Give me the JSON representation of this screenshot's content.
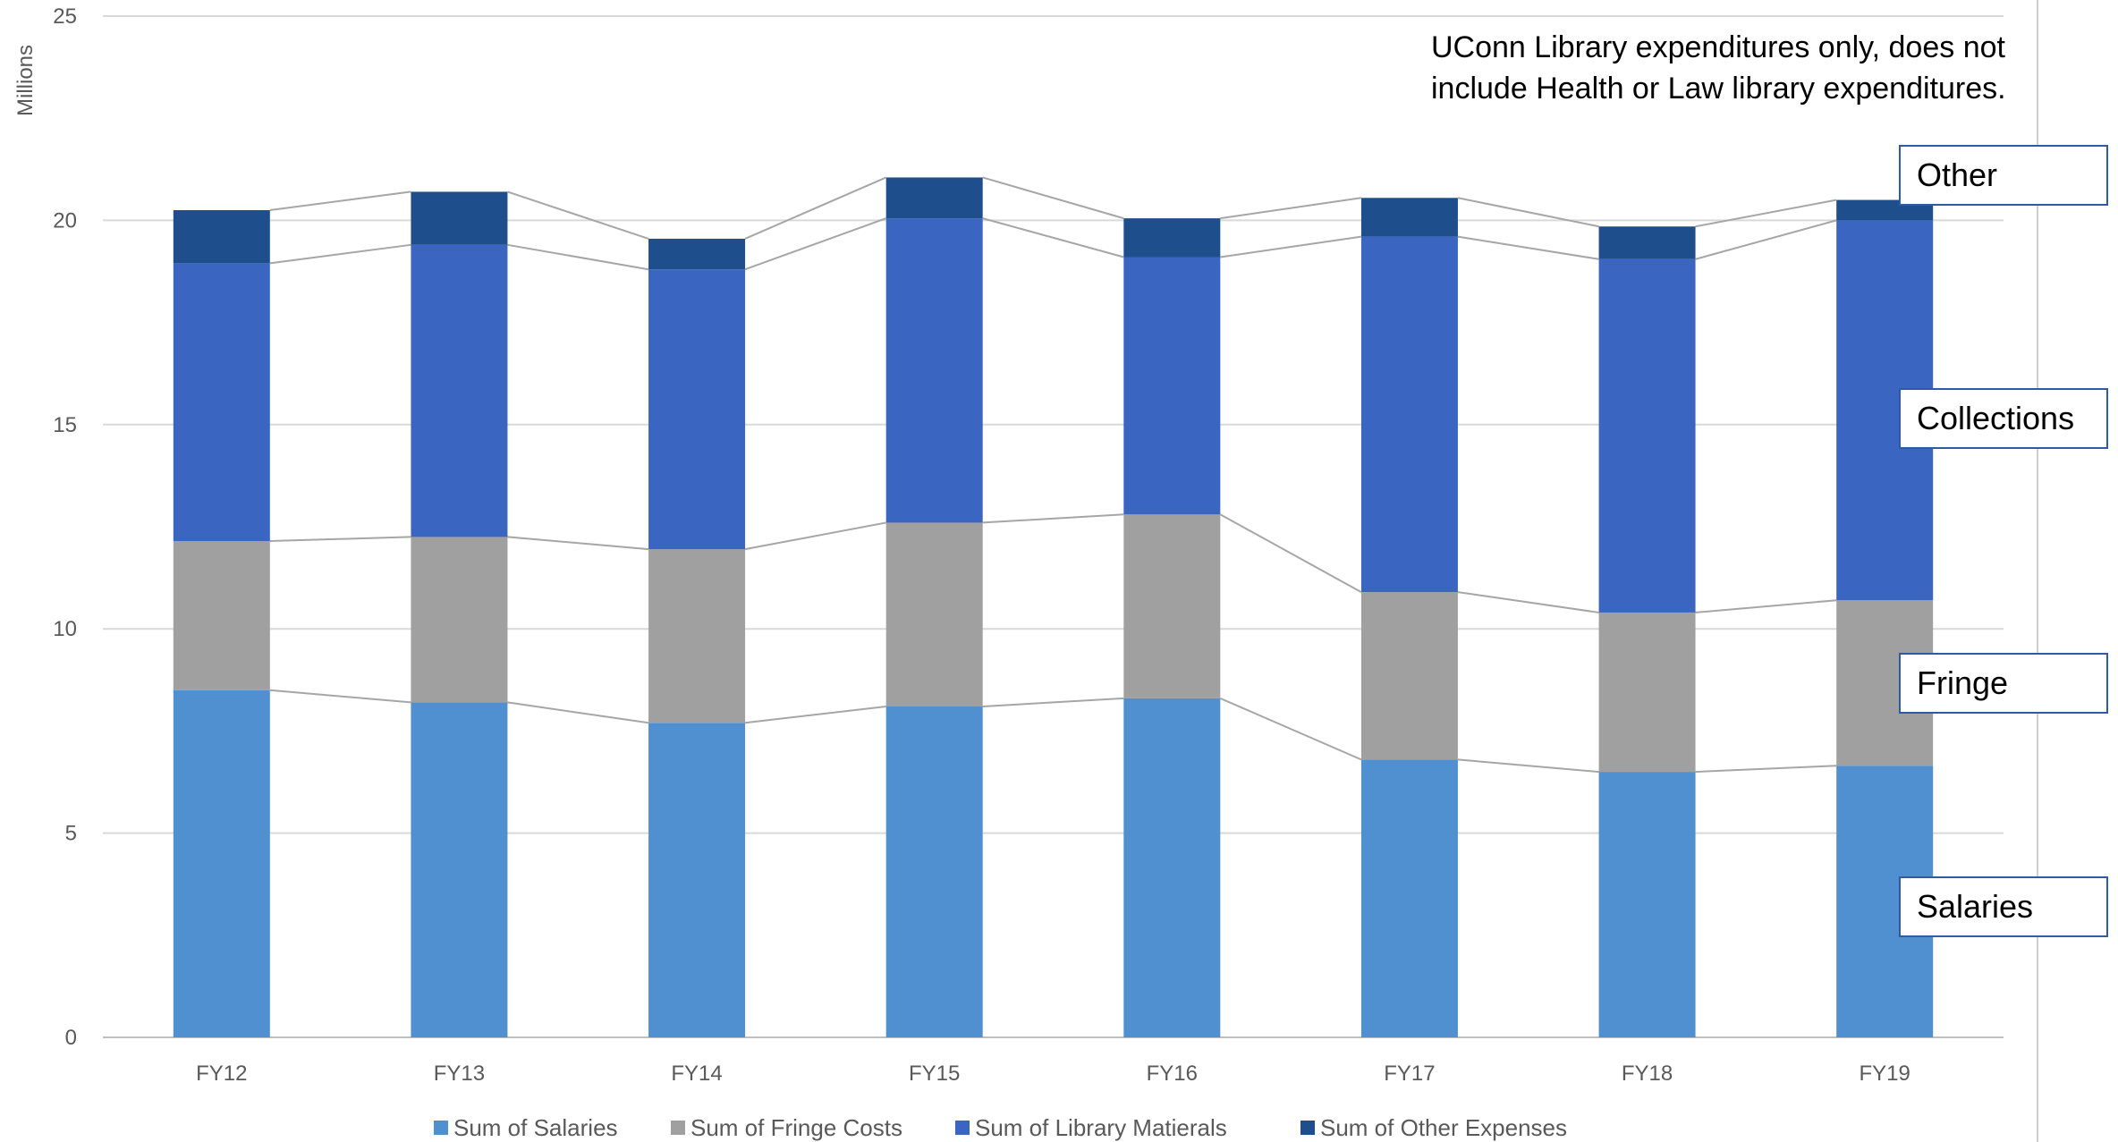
{
  "chart_data": {
    "type": "bar",
    "stacked": true,
    "ylabel": "Millions",
    "ylim": [
      0,
      25
    ],
    "yticks": [
      0,
      5,
      10,
      15,
      20,
      25
    ],
    "grid": true,
    "categories": [
      "FY12",
      "FY13",
      "FY14",
      "FY15",
      "FY16",
      "FY17",
      "FY18",
      "FY19"
    ],
    "series": [
      {
        "name": "Sum of Salaries",
        "color": "#5090d0",
        "values": [
          8.5,
          8.2,
          7.7,
          8.1,
          8.3,
          6.8,
          6.5,
          6.65
        ]
      },
      {
        "name": "Sum of Fringe Costs",
        "color": "#a0a0a0",
        "values": [
          3.65,
          4.05,
          4.25,
          4.5,
          4.5,
          4.1,
          3.9,
          4.05
        ]
      },
      {
        "name": "Sum of Library Matierals",
        "color": "#3a65c0",
        "values": [
          6.8,
          7.15,
          6.85,
          7.45,
          6.3,
          8.7,
          8.65,
          9.3
        ]
      },
      {
        "name": "Sum of Other Expenses",
        "color": "#1f4e8c",
        "values": [
          1.3,
          1.3,
          0.75,
          1.0,
          0.95,
          0.95,
          0.8,
          0.5
        ]
      }
    ],
    "legend_position": "bottom",
    "annotations": {
      "note_line1": "UConn Library expenditures only, does not",
      "note_line2": "include Health or Law library expenditures.",
      "callouts": [
        "Other",
        "Collections",
        "Fringe",
        "Salaries"
      ]
    }
  }
}
